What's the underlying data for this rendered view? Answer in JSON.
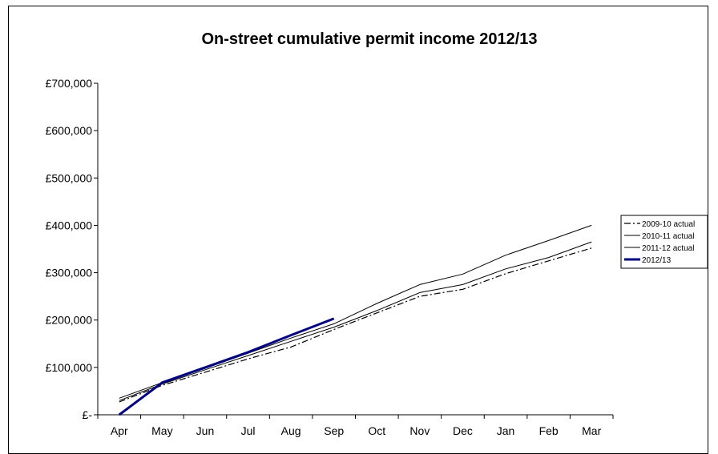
{
  "chart_data": {
    "type": "line",
    "title": "On-street cumulative permit income 2012/13",
    "xlabel": "",
    "ylabel": "",
    "categories": [
      "Apr",
      "May",
      "Jun",
      "Jul",
      "Aug",
      "Sep",
      "Oct",
      "Nov",
      "Dec",
      "Jan",
      "Feb",
      "Mar"
    ],
    "y_tick_labels": [
      "£-",
      "£100,000",
      "£200,000",
      "£300,000",
      "£400,000",
      "£500,000",
      "£600,000",
      "£700,000"
    ],
    "ylim": [
      0,
      700000
    ],
    "grid": false,
    "legend_position": "right",
    "series": [
      {
        "name": "2009-10 actual",
        "style": "dash-dot",
        "color": "#000000",
        "values": [
          27000,
          62000,
          90000,
          118000,
          143000,
          180000,
          215000,
          250000,
          265000,
          298000,
          325000,
          352000
        ]
      },
      {
        "name": "2010-11 actual",
        "style": "solid",
        "color": "#000000",
        "values": [
          30000,
          65000,
          95000,
          125000,
          155000,
          185000,
          220000,
          258000,
          275000,
          308000,
          332000,
          365000
        ]
      },
      {
        "name": "2011-12 actual",
        "style": "solid",
        "color": "#000000",
        "values": [
          35000,
          68000,
          98000,
          130000,
          162000,
          192000,
          235000,
          275000,
          297000,
          337000,
          368000,
          400000
        ]
      },
      {
        "name": "2012/13",
        "style": "bold",
        "color": "#000080",
        "values": [
          0,
          68000,
          100000,
          132000,
          168000,
          203000,
          null,
          null,
          null,
          null,
          null,
          null
        ]
      }
    ]
  }
}
